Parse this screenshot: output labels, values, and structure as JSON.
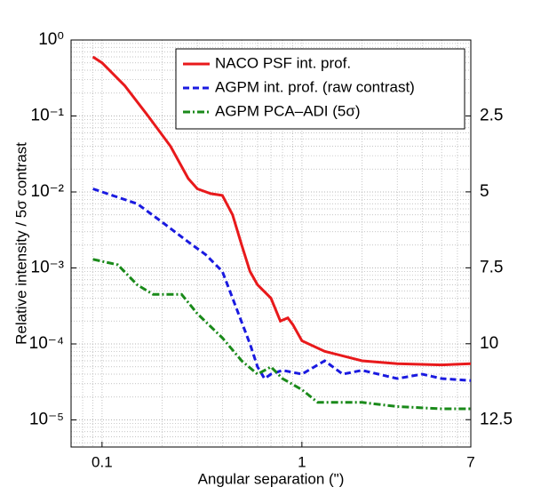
{
  "chart_data": {
    "type": "line",
    "xlabel": "Angular separation (\")",
    "ylabel": "Relative intensity / 5σ contrast",
    "xscale": "log",
    "yscale": "log",
    "grid": true,
    "legend": "upper right",
    "xlim": [
      0.07,
      7
    ],
    "xticks": [
      0.1,
      1,
      7
    ],
    "ylim": [
      4.4e-06,
      1
    ],
    "yticks": [
      {
        "value": 1,
        "label": "10⁰"
      },
      {
        "value": 0.1,
        "label": "10⁻¹"
      },
      {
        "value": 0.01,
        "label": "10⁻²"
      },
      {
        "value": 0.001,
        "label": "10⁻³"
      },
      {
        "value": 0.0001,
        "label": "10⁻⁴"
      },
      {
        "value": 1e-05,
        "label": "10⁻⁵"
      }
    ],
    "y2lim": [
      0,
      13.4
    ],
    "y2ticks": [
      2.5,
      5,
      7.5,
      10,
      12.5
    ],
    "series": [
      {
        "name": "NACO PSF int. prof.",
        "color": "#e8191b",
        "dash": "solid",
        "x": [
          0.09,
          0.1,
          0.13,
          0.17,
          0.22,
          0.27,
          0.3,
          0.35,
          0.4,
          0.45,
          0.5,
          0.55,
          0.6,
          0.7,
          0.78,
          0.85,
          0.9,
          1.0,
          1.3,
          2,
          3,
          5,
          7
        ],
        "values": [
          0.6,
          0.5,
          0.25,
          0.1,
          0.04,
          0.015,
          0.011,
          0.0095,
          0.009,
          0.005,
          0.002,
          0.0009,
          0.0006,
          0.0004,
          0.0002,
          0.00022,
          0.00018,
          0.00011,
          8e-05,
          6e-05,
          5.5e-05,
          5.3e-05,
          5.5e-05
        ]
      },
      {
        "name": "AGPM int. prof. (raw contrast)",
        "color": "#1a1ae0",
        "dash": "dashed",
        "x": [
          0.09,
          0.15,
          0.2,
          0.27,
          0.33,
          0.4,
          0.45,
          0.55,
          0.6,
          0.65,
          0.7,
          0.8,
          1.0,
          1.3,
          1.6,
          2,
          3,
          4,
          5,
          7
        ],
        "values": [
          0.011,
          0.007,
          0.004,
          0.0022,
          0.0015,
          0.0009,
          0.0004,
          0.0001,
          5e-05,
          3.5e-05,
          4e-05,
          4.5e-05,
          4e-05,
          6e-05,
          4e-05,
          4.5e-05,
          3.5e-05,
          4e-05,
          3.5e-05,
          3.3e-05
        ]
      },
      {
        "name": "AGPM PCA–ADI (5σ)",
        "color": "#1a8a1a",
        "dash": "dashdot",
        "x": [
          0.09,
          0.12,
          0.15,
          0.18,
          0.25,
          0.3,
          0.4,
          0.5,
          0.6,
          0.7,
          0.8,
          1.0,
          1.2,
          2,
          3,
          5,
          7
        ],
        "values": [
          0.0013,
          0.0011,
          0.0006,
          0.00045,
          0.00045,
          0.00025,
          0.00012,
          6e-05,
          4e-05,
          5e-05,
          3.5e-05,
          2.5e-05,
          1.7e-05,
          1.7e-05,
          1.5e-05,
          1.4e-05,
          1.4e-05
        ]
      }
    ]
  }
}
